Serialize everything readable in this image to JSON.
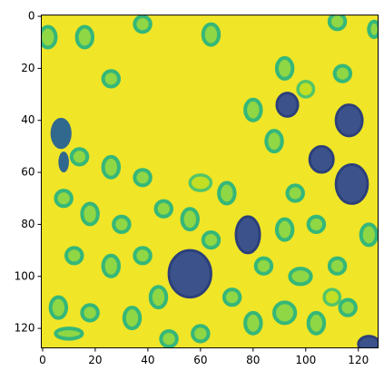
{
  "chart_data": {
    "type": "image",
    "xlim": [
      -0.5,
      127.5
    ],
    "ylim": [
      127.5,
      -0.5
    ],
    "xticks": [
      0,
      20,
      40,
      60,
      80,
      100,
      120
    ],
    "yticks": [
      0,
      20,
      40,
      60,
      80,
      100,
      120
    ]
  }
}
